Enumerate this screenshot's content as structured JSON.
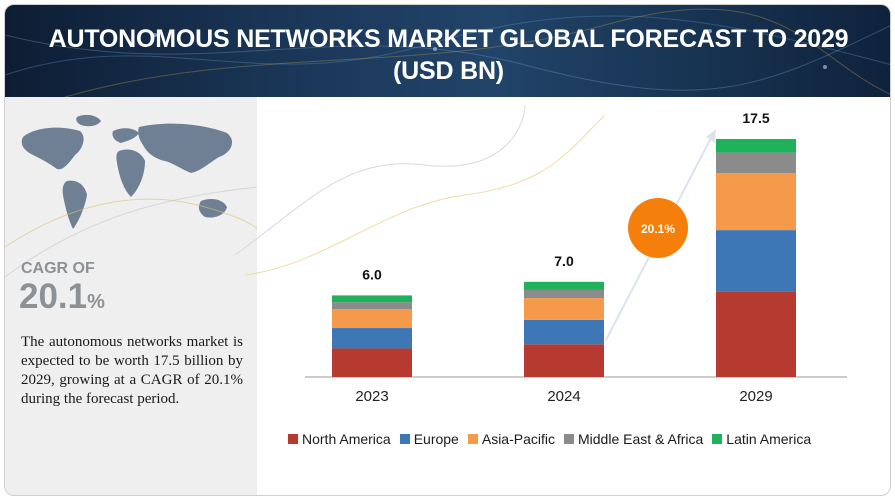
{
  "header": {
    "title_line1": "AUTONOMOUS NETWORKS MARKET GLOBAL FORECAST TO 2029",
    "title_line2": "(USD BN)"
  },
  "left_panel": {
    "cagr_label": "CAGR OF",
    "cagr_value": "20.1",
    "cagr_unit": "%",
    "description": "The autonomous networks market is expected to be worth 17.5  billion by 2029, growing at a CAGR of 20.1% during the forecast period."
  },
  "growth_badge": "20.1%",
  "colors": {
    "North America": "#b63a2f",
    "Europe": "#3d77b6",
    "Asia-Pacific": "#f5994a",
    "Middle East & Africa": "#8b8b8b",
    "Latin America": "#1fb25a",
    "badge": "#f57f0b"
  },
  "chart_data": {
    "type": "bar",
    "stacked": true,
    "categories": [
      "2023",
      "2024",
      "2029"
    ],
    "totals": [
      "6.0",
      "7.0",
      "17.5"
    ],
    "series": [
      {
        "name": "North America",
        "values": [
          2.1,
          2.4,
          6.3
        ]
      },
      {
        "name": "Europe",
        "values": [
          1.5,
          1.8,
          4.5
        ]
      },
      {
        "name": "Asia-Pacific",
        "values": [
          1.4,
          1.6,
          4.2
        ]
      },
      {
        "name": "Middle East & Africa",
        "values": [
          0.5,
          0.6,
          1.5
        ]
      },
      {
        "name": "Latin America",
        "values": [
          0.5,
          0.6,
          1.0
        ]
      }
    ],
    "legend_position": "bottom",
    "grid": false
  }
}
